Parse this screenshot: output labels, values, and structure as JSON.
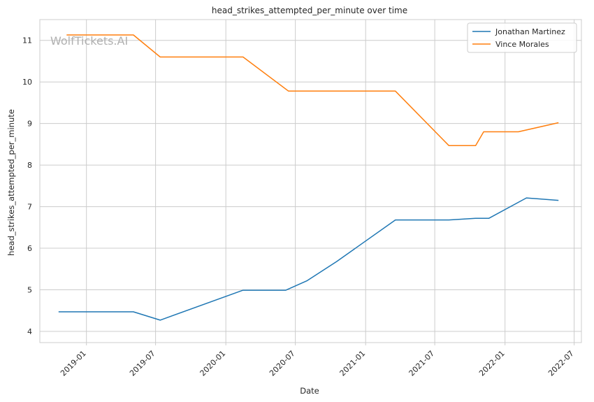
{
  "chart_data": {
    "type": "line",
    "title": "head_strikes_attempted_per_minute over time",
    "xlabel": "Date",
    "ylabel": "head_strikes_attempted_per_minute",
    "watermark": "WolfTickets.AI",
    "x_axis_kind": "date",
    "xlim": [
      "2018-09-01",
      "2022-07-20"
    ],
    "ylim": [
      3.73,
      11.5
    ],
    "x_ticks": [
      {
        "date": "2019-01-01",
        "label": "2019-01"
      },
      {
        "date": "2019-07-01",
        "label": "2019-07"
      },
      {
        "date": "2020-01-01",
        "label": "2020-01"
      },
      {
        "date": "2020-07-01",
        "label": "2020-07"
      },
      {
        "date": "2021-01-01",
        "label": "2021-01"
      },
      {
        "date": "2021-07-01",
        "label": "2021-07"
      },
      {
        "date": "2022-01-01",
        "label": "2022-01"
      },
      {
        "date": "2022-07-01",
        "label": "2022-07"
      }
    ],
    "y_ticks": [
      4,
      5,
      6,
      7,
      8,
      9,
      10,
      11
    ],
    "grid": true,
    "legend_position": "top-right",
    "series": [
      {
        "name": "Jonathan Martinez",
        "color": "#1f77b4",
        "points": [
          {
            "x": "2018-10-20",
            "y": 4.47
          },
          {
            "x": "2019-05-04",
            "y": 4.47
          },
          {
            "x": "2019-07-13",
            "y": 4.27
          },
          {
            "x": "2020-02-15",
            "y": 4.99
          },
          {
            "x": "2020-06-06",
            "y": 4.99
          },
          {
            "x": "2020-08-01",
            "y": 5.22
          },
          {
            "x": "2020-10-17",
            "y": 5.68
          },
          {
            "x": "2021-03-20",
            "y": 6.68
          },
          {
            "x": "2021-08-07",
            "y": 6.68
          },
          {
            "x": "2021-10-16",
            "y": 6.72
          },
          {
            "x": "2021-11-20",
            "y": 6.72
          },
          {
            "x": "2022-02-26",
            "y": 7.21
          },
          {
            "x": "2022-05-21",
            "y": 7.15
          }
        ]
      },
      {
        "name": "Vince Morales",
        "color": "#ff7f0e",
        "points": [
          {
            "x": "2018-11-10",
            "y": 11.13
          },
          {
            "x": "2019-05-04",
            "y": 11.13
          },
          {
            "x": "2019-07-13",
            "y": 10.6
          },
          {
            "x": "2020-02-15",
            "y": 10.6
          },
          {
            "x": "2020-06-13",
            "y": 9.78
          },
          {
            "x": "2021-03-20",
            "y": 9.78
          },
          {
            "x": "2021-08-07",
            "y": 8.47
          },
          {
            "x": "2021-10-16",
            "y": 8.47
          },
          {
            "x": "2021-11-06",
            "y": 8.8
          },
          {
            "x": "2022-02-05",
            "y": 8.8
          },
          {
            "x": "2022-05-21",
            "y": 9.02
          }
        ]
      }
    ]
  }
}
